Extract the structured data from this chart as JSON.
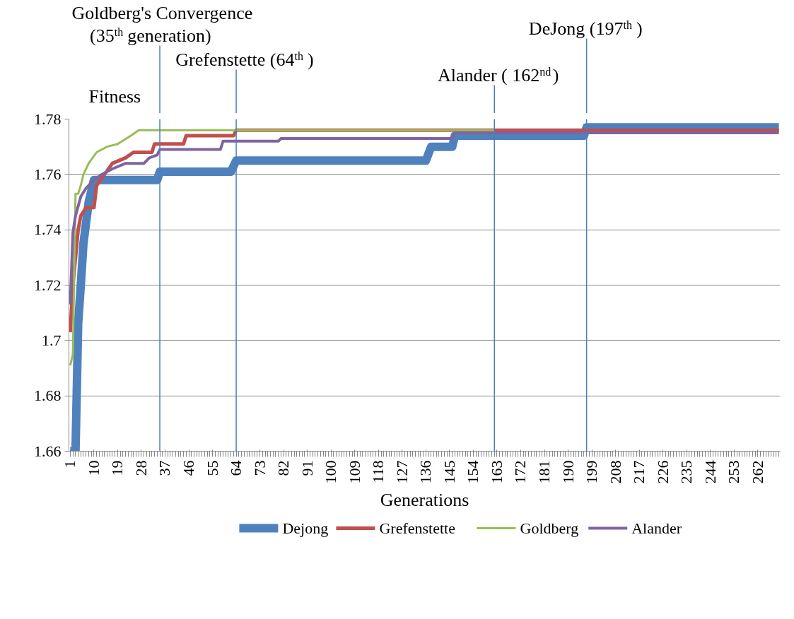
{
  "chart_data": {
    "type": "line",
    "xlabel": "Generations",
    "ylabel": "Fitness",
    "xlim": [
      0.5,
      270.5
    ],
    "xticks": [
      1,
      10,
      19,
      28,
      37,
      46,
      55,
      64,
      73,
      82,
      91,
      100,
      109,
      118,
      127,
      136,
      145,
      154,
      163,
      172,
      181,
      190,
      199,
      208,
      217,
      226,
      235,
      244,
      253,
      262
    ],
    "ylim": [
      1.66,
      1.78
    ],
    "yticks": [
      1.66,
      1.68,
      1.7,
      1.72,
      1.74,
      1.76,
      1.78
    ],
    "grid": "y",
    "legend": "bottom",
    "series": [
      {
        "name": "Dejong",
        "color": "#4f81bd",
        "x": [
          1,
          3,
          4,
          5,
          6,
          8,
          10,
          34,
          35,
          62,
          64,
          136,
          138,
          146,
          147,
          196,
          197,
          270
        ],
        "values": [
          1.66,
          1.66,
          1.706,
          1.72,
          1.735,
          1.75,
          1.758,
          1.758,
          1.761,
          1.761,
          1.765,
          1.765,
          1.77,
          1.77,
          1.774,
          1.774,
          1.777,
          1.777
        ]
      },
      {
        "name": "Grefenstette",
        "color": "#c0504d",
        "x": [
          1,
          2,
          4,
          5,
          7,
          10,
          11,
          14,
          17,
          22,
          25,
          32,
          33,
          44,
          45,
          63,
          64,
          270
        ],
        "values": [
          1.703,
          1.72,
          1.74,
          1.745,
          1.748,
          1.748,
          1.756,
          1.76,
          1.764,
          1.766,
          1.768,
          1.768,
          1.771,
          1.771,
          1.774,
          1.774,
          1.776,
          1.776
        ]
      },
      {
        "name": "Goldberg",
        "color": "#9bbb59",
        "x": [
          1,
          2,
          3,
          4,
          5,
          6,
          8,
          11,
          15,
          19,
          24,
          27,
          162
        ],
        "values": [
          1.691,
          1.695,
          1.753,
          1.753,
          1.756,
          1.76,
          1.764,
          1.768,
          1.77,
          1.771,
          1.774,
          1.776,
          1.776
        ]
      },
      {
        "name": "Alander",
        "color": "#8064a2",
        "x": [
          1,
          2,
          3,
          5,
          7,
          10,
          13,
          17,
          22,
          29,
          31,
          34,
          35,
          58,
          59,
          80,
          81,
          146,
          147,
          270
        ],
        "values": [
          1.713,
          1.739,
          1.745,
          1.752,
          1.755,
          1.758,
          1.76,
          1.762,
          1.764,
          1.764,
          1.766,
          1.767,
          1.769,
          1.769,
          1.772,
          1.772,
          1.773,
          1.773,
          1.775,
          1.775
        ]
      }
    ],
    "ref_lines": [
      {
        "axis": "x",
        "value": 35,
        "label": "Goldberg's Convergence (35$^{th}$ generation)",
        "color": "#4a7ebb"
      },
      {
        "axis": "x",
        "value": 64,
        "label": "Grefenstette (64$^{th}$)",
        "color": "#4a7ebb"
      },
      {
        "axis": "x",
        "value": 162,
        "label": "Alander ( 162$^{nd}$)",
        "color": "#4a7ebb"
      },
      {
        "axis": "x",
        "value": 197,
        "label": "DeJong (197$^{th}$)",
        "color": "#4a7ebb"
      }
    ]
  }
}
